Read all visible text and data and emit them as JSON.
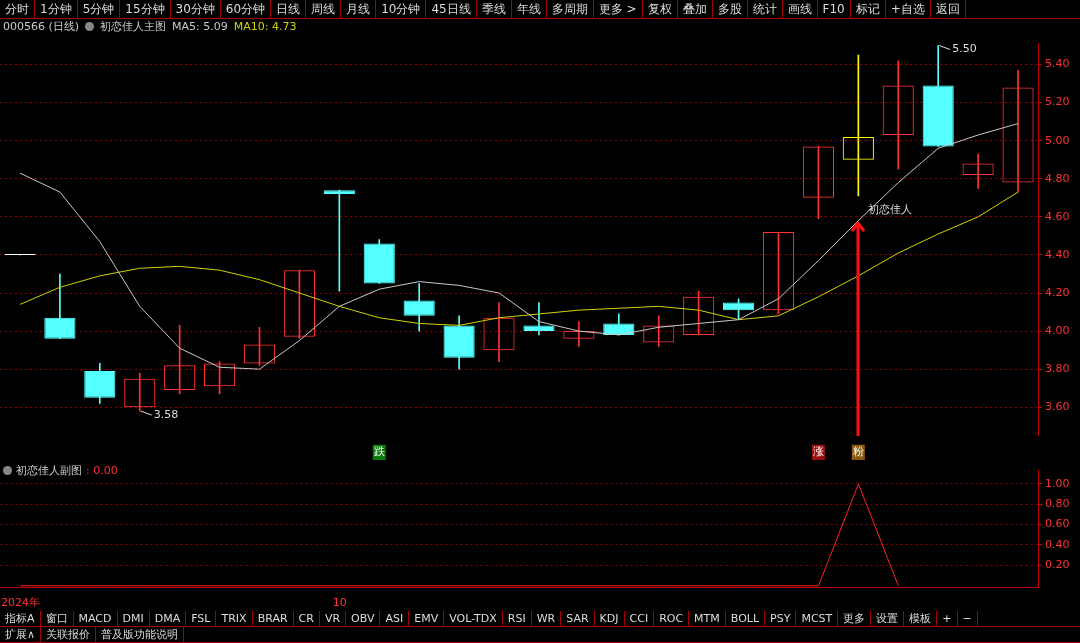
{
  "chart_data": [
    {
      "type": "other",
      "annotations": [
        "分时",
        "1分钟",
        "5分钟",
        "15分钟",
        "30分钟",
        "60分钟",
        "日线",
        "周线",
        "月线",
        "10分钟",
        "45日线",
        "季线",
        "年线",
        "多周期",
        "更多 >",
        "复权",
        "叠加",
        "多股",
        "统计",
        "画线",
        "F10",
        "标记",
        "+自选",
        "返回"
      ]
    },
    {
      "type": "candlestick",
      "title": "初恋佳人主图",
      "subtitle": "000566 (日线)",
      "categories": [
        null,
        null,
        null,
        null,
        null,
        null,
        null,
        null,
        null,
        "跌",
        null,
        null,
        null,
        null,
        null,
        null,
        null,
        null,
        null,
        null,
        "涨",
        "粉",
        null,
        null,
        null,
        null
      ],
      "ohlc": [
        [
          4.4,
          4.4,
          4.4,
          4.4
        ],
        [
          4.07,
          4.3,
          3.96,
          3.96
        ],
        [
          3.79,
          3.83,
          3.62,
          3.65
        ],
        [
          3.6,
          3.78,
          3.58,
          3.75
        ],
        [
          3.69,
          4.03,
          3.67,
          3.82
        ],
        [
          3.71,
          3.84,
          3.67,
          3.83
        ],
        [
          3.83,
          4.02,
          3.82,
          3.93
        ],
        [
          3.97,
          4.32,
          3.96,
          4.32
        ],
        [
          4.74,
          4.74,
          4.21,
          4.72
        ],
        [
          4.46,
          4.48,
          4.25,
          4.25
        ],
        [
          4.16,
          4.25,
          4.0,
          4.08
        ],
        [
          4.03,
          4.08,
          3.8,
          3.86
        ],
        [
          3.9,
          4.15,
          3.84,
          4.07
        ],
        [
          4.03,
          4.15,
          3.98,
          4.0
        ],
        [
          3.96,
          4.05,
          3.92,
          4.0
        ],
        [
          4.04,
          4.09,
          3.98,
          3.98
        ],
        [
          3.94,
          4.08,
          3.92,
          4.03
        ],
        [
          3.98,
          4.21,
          3.98,
          4.18
        ],
        [
          4.15,
          4.17,
          4.06,
          4.11
        ],
        [
          4.11,
          4.52,
          4.09,
          4.52
        ],
        [
          4.7,
          4.97,
          4.59,
          4.97
        ],
        [
          4.9,
          5.45,
          4.71,
          5.02
        ],
        [
          5.03,
          5.42,
          4.85,
          5.29
        ],
        [
          5.29,
          5.5,
          4.97,
          4.97
        ],
        [
          4.82,
          4.93,
          4.75,
          4.88
        ],
        [
          4.78,
          5.37,
          4.73,
          5.28
        ]
      ],
      "colors": [
        "#ffffff",
        "#54ffff",
        "#54ffff",
        "#ff3232",
        "#ff3232",
        "#ff3232",
        "#ff3232",
        "#ff3232",
        "#54ffff",
        "#54ffff",
        "#54ffff",
        "#54ffff",
        "#ff3232",
        "#54ffff",
        "#ff3232",
        "#54ffff",
        "#ff3232",
        "#ff3232",
        "#54ffff",
        "#ff3232",
        "#ff3232",
        "#ffff00",
        "#ff3232",
        "#54ffff",
        "#ff3232",
        "#ff3232"
      ],
      "series": [
        {
          "name": "MA5: 5.09",
          "type": "line",
          "color": "#c8c8c8",
          "values": [
            4.83,
            4.73,
            4.47,
            4.13,
            3.91,
            3.81,
            3.8,
            3.95,
            4.13,
            4.22,
            4.26,
            4.24,
            4.2,
            4.05,
            4.0,
            3.98,
            4.02,
            4.04,
            4.06,
            4.17,
            4.37,
            4.58,
            4.78,
            4.96,
            5.03,
            5.09
          ]
        },
        {
          "name": "MA10: 4.73",
          "type": "line",
          "color": "#d2d200",
          "values": [
            4.14,
            4.23,
            4.29,
            4.33,
            4.34,
            4.32,
            4.27,
            4.2,
            4.13,
            4.07,
            4.04,
            4.03,
            4.07,
            4.09,
            4.11,
            4.12,
            4.13,
            4.11,
            4.06,
            4.08,
            4.18,
            4.29,
            4.41,
            4.51,
            4.6,
            4.73
          ]
        }
      ],
      "ylim": [
        3.45,
        5.51
      ],
      "yticks": [
        {
          "value": 3.6,
          "label": "3.60"
        },
        {
          "value": 3.8,
          "label": "3.80"
        },
        {
          "value": 4.0,
          "label": "4.00"
        },
        {
          "value": 4.2,
          "label": "4.20"
        },
        {
          "value": 4.4,
          "label": "4.40"
        },
        {
          "value": 4.6,
          "label": "4.60"
        },
        {
          "value": 4.8,
          "label": "4.80"
        },
        {
          "value": 5.0,
          "label": "5.00"
        },
        {
          "value": 5.2,
          "label": "5.20"
        },
        {
          "value": 5.4,
          "label": "5.40"
        }
      ],
      "grid": "y",
      "annotations": [
        "5.50",
        "3.58",
        "初恋佳人"
      ]
    },
    {
      "type": "line",
      "title": "初恋佳人副图",
      "categories": [
        "2024年",
        null,
        null,
        null,
        null,
        null,
        null,
        null,
        "10",
        null,
        null,
        null,
        null,
        null,
        null,
        null,
        null,
        null,
        null,
        null,
        null,
        null,
        null,
        null,
        null,
        null
      ],
      "series": [
        {
          "color": "#ff2020",
          "values": [
            0,
            0,
            0,
            0,
            0,
            0,
            0,
            0,
            0,
            0,
            0,
            0,
            0,
            0,
            0,
            0,
            0,
            0,
            0,
            0,
            0,
            1,
            0,
            null,
            null,
            null
          ]
        }
      ],
      "ylim": [
        -0.02,
        1.13
      ],
      "yticks": [
        {
          "value": 0.2,
          "label": "0.20"
        },
        {
          "value": 0.4,
          "label": "0.40"
        },
        {
          "value": 0.6,
          "label": "0.60"
        },
        {
          "value": 0.8,
          "label": "0.80"
        },
        {
          "value": 1.0,
          "label": "1.00"
        }
      ],
      "grid": "y",
      "annotations": [
        ": 0.00"
      ]
    },
    {
      "type": "other",
      "annotations": [
        "指标A",
        "窗口",
        "MACD",
        "DMI",
        "DMA",
        "FSL",
        "TRIX",
        "BRAR",
        "CR",
        "VR",
        "OBV",
        "ASI",
        "EMV",
        "VOL-TDX",
        "RSI",
        "WR",
        "SAR",
        "KDJ",
        "CCI",
        "ROC",
        "MTM",
        "BOLL",
        "PSY",
        "MCST",
        "更多",
        "设置",
        "模板",
        "+",
        "−"
      ]
    },
    {
      "type": "other",
      "annotations": [
        "扩展∧",
        "关联报价",
        "普及版功能说明"
      ]
    }
  ]
}
